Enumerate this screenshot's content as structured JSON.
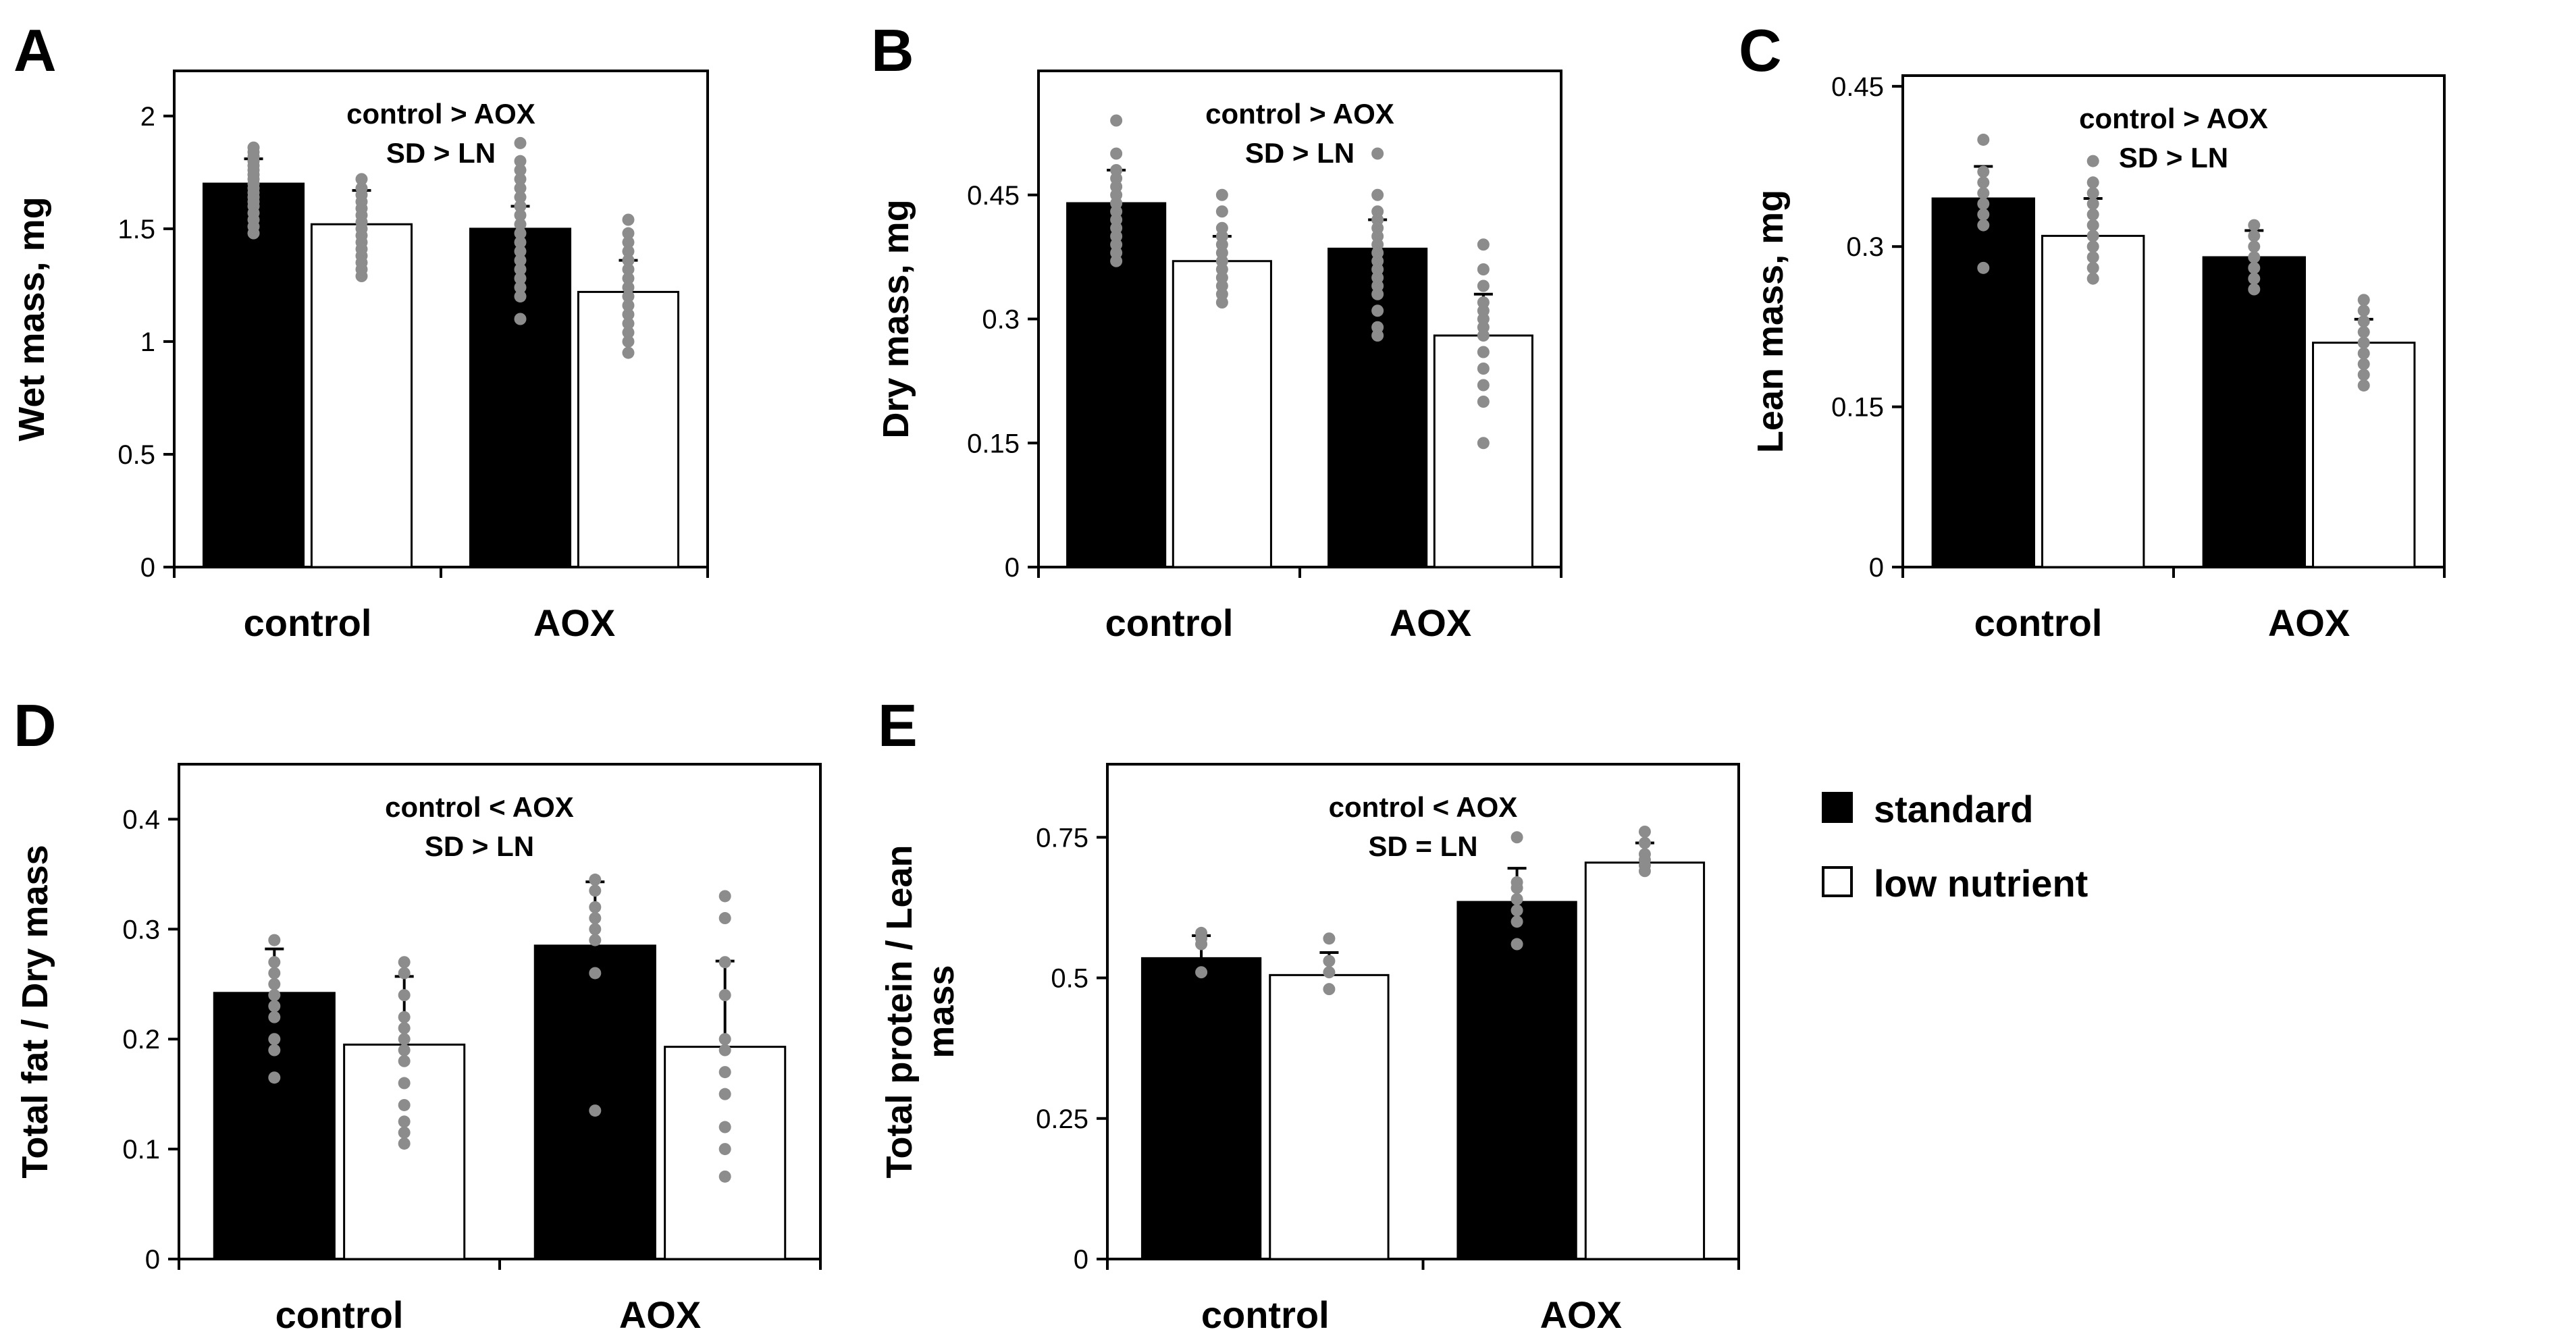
{
  "colors": {
    "standard": "#000000",
    "low_nutrient": "#ffffff",
    "points": "#8c8c8c",
    "axis": "#000000"
  },
  "legend": {
    "items": [
      {
        "label": "standard",
        "color": "#000000"
      },
      {
        "label": "low nutrient",
        "color": "#ffffff"
      }
    ]
  },
  "chart_data": [
    {
      "panel": "A",
      "type": "bar",
      "ylabel": "Wet mass, mg",
      "ylim": [
        0,
        2.2
      ],
      "yticks": [
        0,
        0.5,
        1,
        1.5,
        2
      ],
      "ytick_labels": [
        "0",
        "0.5",
        "1",
        "1.5",
        "2"
      ],
      "categories": [
        "control",
        "AOX"
      ],
      "annotations": [
        "control > AOX",
        "SD > LN"
      ],
      "series": [
        {
          "name": "standard",
          "values": [
            1.7,
            1.5
          ],
          "errors": [
            0.11,
            0.1
          ],
          "points": [
            [
              1.86,
              1.84,
              1.82,
              1.8,
              1.78,
              1.76,
              1.74,
              1.72,
              1.7,
              1.68,
              1.66,
              1.64,
              1.62,
              1.6,
              1.57,
              1.54,
              1.51,
              1.48
            ],
            [
              1.88,
              1.8,
              1.76,
              1.72,
              1.68,
              1.64,
              1.6,
              1.56,
              1.52,
              1.48,
              1.44,
              1.4,
              1.36,
              1.32,
              1.28,
              1.24,
              1.2,
              1.1
            ]
          ]
        },
        {
          "name": "low nutrient",
          "values": [
            1.52,
            1.22
          ],
          "errors": [
            0.15,
            0.14
          ],
          "points": [
            [
              1.72,
              1.68,
              1.65,
              1.62,
              1.59,
              1.56,
              1.53,
              1.5,
              1.47,
              1.44,
              1.41,
              1.38,
              1.35,
              1.32,
              1.29
            ],
            [
              1.54,
              1.48,
              1.44,
              1.4,
              1.36,
              1.32,
              1.28,
              1.24,
              1.2,
              1.16,
              1.12,
              1.08,
              1.04,
              1.0,
              0.95
            ]
          ]
        }
      ]
    },
    {
      "panel": "B",
      "type": "bar",
      "ylabel": "Dry mass, mg",
      "ylim": [
        0,
        0.6
      ],
      "yticks": [
        0,
        0.15,
        0.3,
        0.45
      ],
      "ytick_labels": [
        "0",
        "0.15",
        "0.3",
        "0.45"
      ],
      "categories": [
        "control",
        "AOX"
      ],
      "annotations": [
        "control > AOX",
        "SD > LN"
      ],
      "series": [
        {
          "name": "standard",
          "values": [
            0.44,
            0.385
          ],
          "errors": [
            0.04,
            0.035
          ],
          "points": [
            [
              0.54,
              0.5,
              0.48,
              0.47,
              0.46,
              0.45,
              0.44,
              0.43,
              0.42,
              0.41,
              0.4,
              0.39,
              0.38,
              0.37
            ],
            [
              0.5,
              0.45,
              0.43,
              0.42,
              0.41,
              0.4,
              0.39,
              0.38,
              0.37,
              0.36,
              0.35,
              0.34,
              0.33,
              0.31,
              0.29,
              0.28
            ]
          ]
        },
        {
          "name": "low nutrient",
          "values": [
            0.37,
            0.28
          ],
          "errors": [
            0.03,
            0.05
          ],
          "points": [
            [
              0.45,
              0.43,
              0.41,
              0.4,
              0.39,
              0.38,
              0.37,
              0.36,
              0.35,
              0.34,
              0.33,
              0.32
            ],
            [
              0.39,
              0.36,
              0.34,
              0.32,
              0.31,
              0.3,
              0.29,
              0.28,
              0.26,
              0.24,
              0.22,
              0.2,
              0.15
            ]
          ]
        }
      ]
    },
    {
      "panel": "C",
      "type": "bar",
      "ylabel": "Lean mass, mg",
      "ylim": [
        0,
        0.46
      ],
      "yticks": [
        0,
        0.15,
        0.3,
        0.45
      ],
      "ytick_labels": [
        "0",
        "0.15",
        "0.3",
        "0.45"
      ],
      "categories": [
        "control",
        "AOX"
      ],
      "annotations": [
        "control > AOX",
        "SD > LN"
      ],
      "series": [
        {
          "name": "standard",
          "values": [
            0.345,
            0.29
          ],
          "errors": [
            0.03,
            0.025
          ],
          "points": [
            [
              0.4,
              0.37,
              0.36,
              0.35,
              0.34,
              0.33,
              0.32,
              0.28
            ],
            [
              0.32,
              0.31,
              0.3,
              0.29,
              0.28,
              0.27,
              0.26
            ]
          ]
        },
        {
          "name": "low nutrient",
          "values": [
            0.31,
            0.21
          ],
          "errors": [
            0.035,
            0.022
          ],
          "points": [
            [
              0.38,
              0.36,
              0.35,
              0.34,
              0.33,
              0.32,
              0.31,
              0.3,
              0.29,
              0.28,
              0.27
            ],
            [
              0.25,
              0.24,
              0.23,
              0.22,
              0.21,
              0.2,
              0.19,
              0.18,
              0.17
            ]
          ]
        }
      ]
    },
    {
      "panel": "D",
      "type": "bar",
      "ylabel": "Total fat / Dry mass",
      "ylim": [
        0,
        0.45
      ],
      "yticks": [
        0,
        0.1,
        0.2,
        0.3,
        0.4
      ],
      "ytick_labels": [
        "0",
        "0.1",
        "0.2",
        "0.3",
        "0.4"
      ],
      "categories": [
        "control",
        "AOX"
      ],
      "annotations": [
        "control < AOX",
        "SD > LN"
      ],
      "series": [
        {
          "name": "standard",
          "values": [
            0.242,
            0.285
          ],
          "errors": [
            0.04,
            0.058
          ],
          "points": [
            [
              0.29,
              0.27,
              0.26,
              0.25,
              0.24,
              0.23,
              0.22,
              0.2,
              0.19,
              0.165
            ],
            [
              0.345,
              0.335,
              0.32,
              0.31,
              0.3,
              0.29,
              0.26,
              0.135
            ]
          ]
        },
        {
          "name": "low nutrient",
          "values": [
            0.195,
            0.193
          ],
          "errors": [
            0.062,
            0.078
          ],
          "points": [
            [
              0.27,
              0.26,
              0.24,
              0.22,
              0.21,
              0.2,
              0.19,
              0.18,
              0.16,
              0.14,
              0.125,
              0.115,
              0.105
            ],
            [
              0.33,
              0.31,
              0.27,
              0.24,
              0.2,
              0.19,
              0.17,
              0.15,
              0.12,
              0.1,
              0.075
            ]
          ]
        }
      ]
    },
    {
      "panel": "E",
      "type": "bar",
      "ylabel": "Total protein / Lean mass",
      "ylim": [
        0,
        0.88
      ],
      "yticks": [
        0,
        0.25,
        0.5,
        0.75
      ],
      "ytick_labels": [
        "0",
        "0.25",
        "0.5",
        "0.75"
      ],
      "categories": [
        "control",
        "AOX"
      ],
      "annotations": [
        "control < AOX",
        "SD = LN"
      ],
      "series": [
        {
          "name": "standard",
          "values": [
            0.535,
            0.635
          ],
          "errors": [
            0.04,
            0.06
          ],
          "points": [
            [
              0.58,
              0.57,
              0.56,
              0.51
            ],
            [
              0.75,
              0.67,
              0.66,
              0.64,
              0.62,
              0.6,
              0.56
            ]
          ]
        },
        {
          "name": "low nutrient",
          "values": [
            0.505,
            0.705
          ],
          "errors": [
            0.04,
            0.035
          ],
          "points": [
            [
              0.57,
              0.53,
              0.51,
              0.48
            ],
            [
              0.76,
              0.74,
              0.72,
              0.71,
              0.7,
              0.69
            ]
          ]
        }
      ]
    }
  ]
}
